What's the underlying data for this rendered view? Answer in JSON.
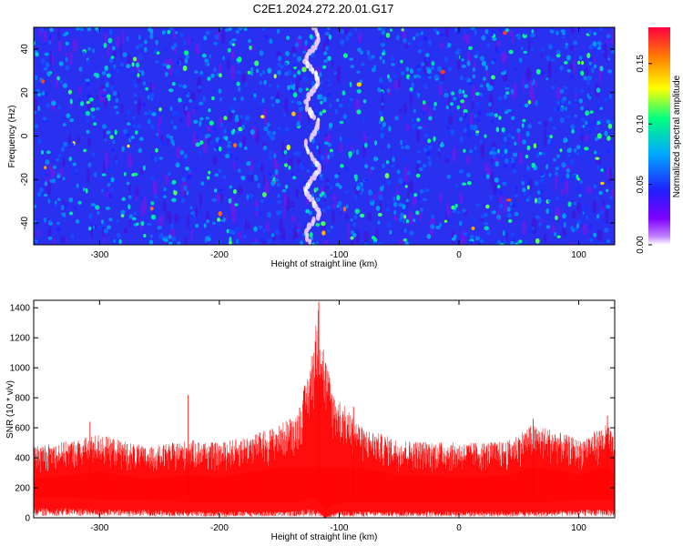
{
  "title": "C2E1.2024.272.20.01.G17",
  "chart_data": [
    {
      "type": "heatmap",
      "xlabel": "Height of straight line (km)",
      "ylabel": "Frequency (Hz)",
      "xlim": [
        -355,
        130
      ],
      "ylim": [
        -50,
        50
      ],
      "xticks": [
        -300,
        -200,
        -100,
        0,
        100
      ],
      "yticks": [
        -40,
        -20,
        0,
        20,
        40
      ],
      "colorbar": {
        "label": "Normalized spectral amplitude",
        "range": [
          0.0,
          0.18
        ],
        "ticks": [
          0.0,
          0.05,
          0.1,
          0.15
        ],
        "tick_labels": [
          "0.00",
          "0.05",
          "0.10",
          "0.15"
        ],
        "colormap": [
          "#ffffff",
          "#7f00ff",
          "#2020ff",
          "#00aaff",
          "#00ff80",
          "#ffff00",
          "#ff8000",
          "#ff0040"
        ]
      },
      "background_value": 0.035,
      "features": [
        {
          "name": "bright streak",
          "x_range": [
            -130,
            -115
          ],
          "value": 0.18
        }
      ]
    },
    {
      "type": "area",
      "xlabel": "Height of straight line (km)",
      "ylabel": "SNR (10 * v/v)",
      "xlim": [
        -355,
        130
      ],
      "ylim": [
        0,
        1450
      ],
      "xticks": [
        -300,
        -200,
        -100,
        0,
        100
      ],
      "yticks": [
        0,
        200,
        400,
        600,
        800,
        1000,
        1200,
        1400
      ],
      "color": "#ff0000",
      "envelope": [
        {
          "x": -355,
          "low": 60,
          "high": 480
        },
        {
          "x": -320,
          "low": 60,
          "high": 520
        },
        {
          "x": -300,
          "low": 50,
          "high": 560
        },
        {
          "x": -260,
          "low": 50,
          "high": 470
        },
        {
          "x": -225,
          "low": 40,
          "high": 520
        },
        {
          "x": -200,
          "low": 40,
          "high": 500
        },
        {
          "x": -170,
          "low": 40,
          "high": 560
        },
        {
          "x": -150,
          "low": 40,
          "high": 620
        },
        {
          "x": -135,
          "low": 40,
          "high": 700
        },
        {
          "x": -125,
          "low": 60,
          "high": 1000
        },
        {
          "x": -117,
          "low": 40,
          "high": 1440
        },
        {
          "x": -112,
          "low": 0,
          "high": 1100
        },
        {
          "x": -105,
          "low": 30,
          "high": 850
        },
        {
          "x": -95,
          "low": 40,
          "high": 740
        },
        {
          "x": -80,
          "low": 40,
          "high": 600
        },
        {
          "x": -50,
          "low": 40,
          "high": 520
        },
        {
          "x": 0,
          "low": 40,
          "high": 500
        },
        {
          "x": 40,
          "low": 40,
          "high": 510
        },
        {
          "x": 60,
          "low": 40,
          "high": 620
        },
        {
          "x": 75,
          "low": 40,
          "high": 600
        },
        {
          "x": 100,
          "low": 50,
          "high": 520
        },
        {
          "x": 125,
          "low": 50,
          "high": 630
        },
        {
          "x": 130,
          "low": 50,
          "high": 500
        }
      ],
      "peaks": [
        {
          "x": -117,
          "y": 1440
        },
        {
          "x": -88,
          "y": 740
        },
        {
          "x": -226,
          "y": 820
        },
        {
          "x": -308,
          "y": 640
        },
        {
          "x": 62,
          "y": 660
        },
        {
          "x": 124,
          "y": 680
        }
      ]
    }
  ]
}
